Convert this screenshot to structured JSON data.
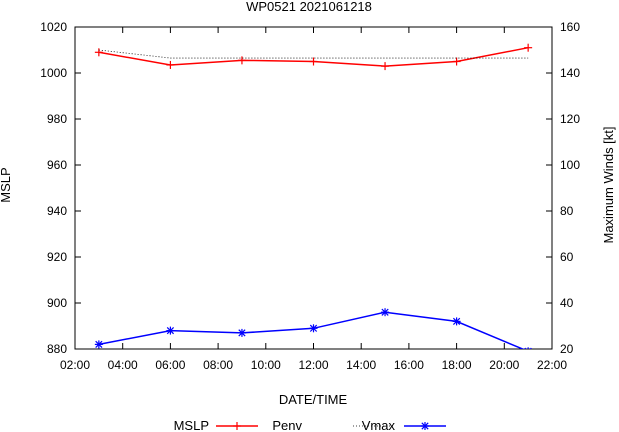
{
  "chart_data": {
    "type": "line",
    "title": "WP0521 2021061218",
    "xlabel": "DATE/TIME",
    "ylabel": "MSLP",
    "y2label": "Maximum Winds [kt]",
    "x_ticks": [
      "02:00",
      "04:00",
      "06:00",
      "08:00",
      "10:00",
      "12:00",
      "14:00",
      "16:00",
      "18:00",
      "20:00",
      "22:00"
    ],
    "xlim_hours": [
      2,
      22
    ],
    "ylim": [
      880,
      1020
    ],
    "y_ticks": [
      880,
      900,
      920,
      940,
      960,
      980,
      1000,
      1020
    ],
    "y2lim": [
      20,
      160
    ],
    "y2_ticks": [
      20,
      40,
      60,
      80,
      100,
      120,
      140,
      160
    ],
    "grid": false,
    "legend_position": "bottom",
    "series": [
      {
        "name": "MSLP",
        "axis": "left",
        "color": "#ff0000",
        "style": "solid",
        "marker": "plus",
        "x_hours": [
          3,
          6,
          9,
          12,
          15,
          18,
          21
        ],
        "values": [
          1009,
          1003.5,
          1005.5,
          1005,
          1003,
          1005,
          1011
        ]
      },
      {
        "name": "Penv",
        "axis": "left",
        "color": "#000000",
        "style": "dotted",
        "marker": "none",
        "x_hours": [
          3,
          6,
          9,
          12,
          15,
          18,
          21
        ],
        "values": [
          1010,
          1006.5,
          1006.5,
          1006.5,
          1006.5,
          1006.5,
          1006.5
        ]
      },
      {
        "name": "Vmax",
        "axis": "right",
        "color": "#0000ff",
        "style": "solid",
        "marker": "star",
        "x_hours": [
          3,
          6,
          9,
          12,
          15,
          18,
          21
        ],
        "values": [
          22,
          28,
          27,
          29,
          36,
          32,
          19
        ]
      }
    ]
  }
}
